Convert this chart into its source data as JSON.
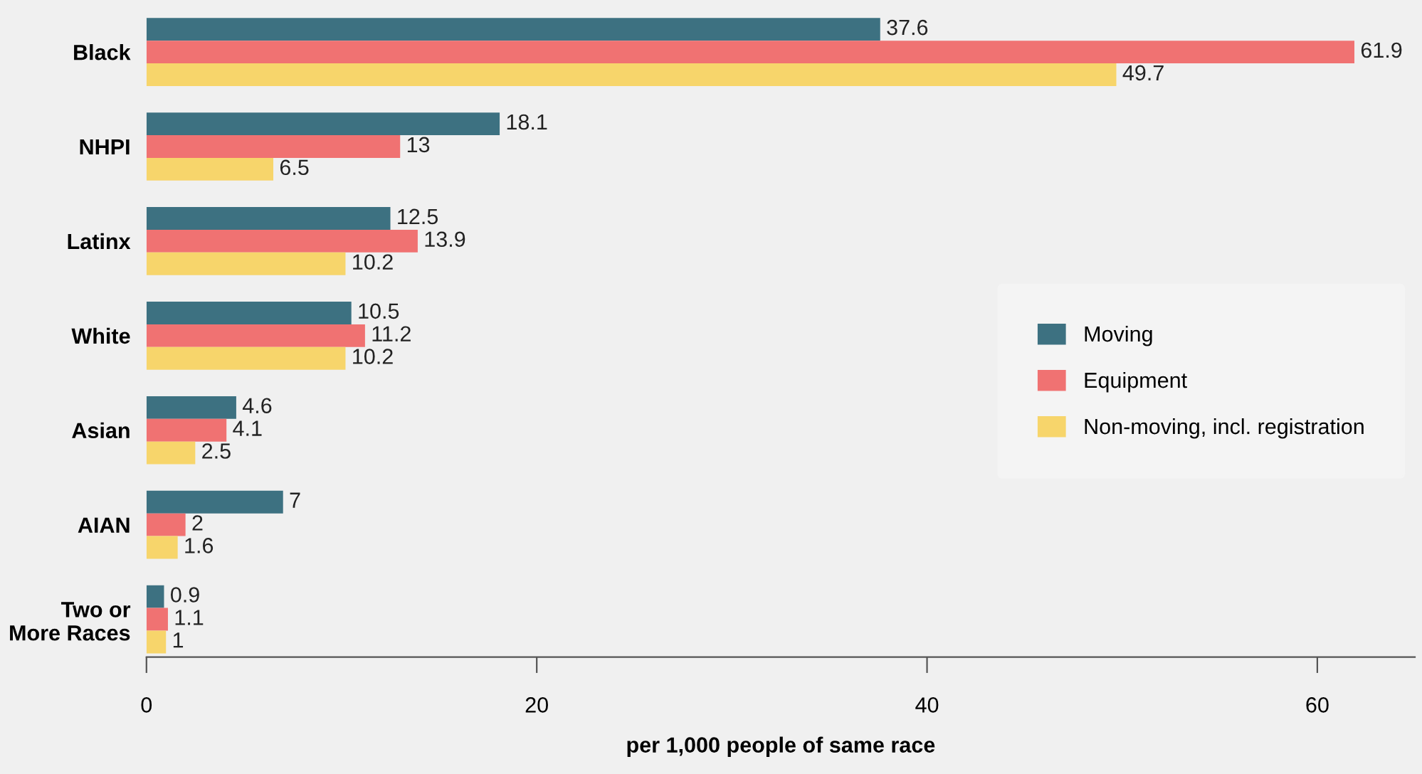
{
  "chart_data": {
    "type": "bar",
    "orientation": "horizontal",
    "xlabel": "per 1,000 people of same race",
    "categories": [
      "Black",
      "NHPI",
      "Latinx",
      "White",
      "Asian",
      "AIAN",
      "Two or\nMore Races"
    ],
    "series": [
      {
        "name": "Moving",
        "color": "#3d7181",
        "values": [
          37.6,
          18.1,
          12.5,
          10.5,
          4.6,
          7,
          0.9
        ]
      },
      {
        "name": "Equipment",
        "color": "#f07272",
        "values": [
          61.9,
          13,
          13.9,
          11.2,
          4.1,
          2,
          1.1
        ]
      },
      {
        "name": "Non-moving, incl. registration",
        "color": "#f7d56b",
        "values": [
          49.7,
          6.5,
          10.2,
          10.2,
          2.5,
          1.6,
          1
        ]
      }
    ],
    "xlim": [
      0,
      65
    ],
    "xticks": [
      0,
      20,
      40,
      60
    ],
    "data_labels": true,
    "grid": false,
    "legend": "right"
  }
}
